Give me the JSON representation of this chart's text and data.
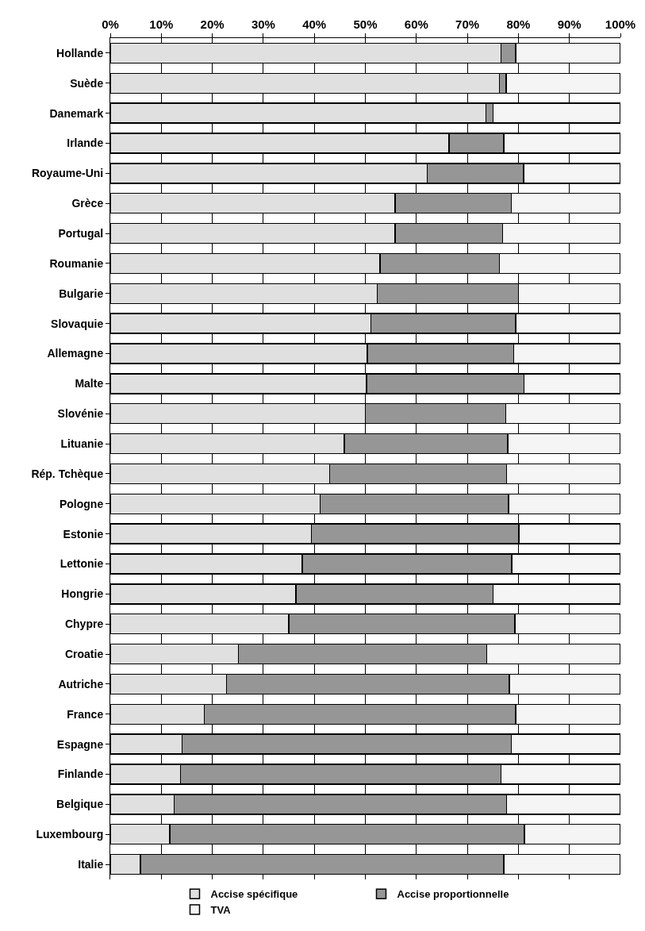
{
  "chart_data": {
    "type": "bar",
    "orientation": "horizontal",
    "stacked": true,
    "categories": [
      "Hollande",
      "Suède",
      "Danemark",
      "Irlande",
      "Royaume-Uni",
      "Grèce",
      "Portugal",
      "Roumanie",
      "Bulgarie",
      "Slovaquie",
      "Allemagne",
      "Malte",
      "Slovénie",
      "Lituanie",
      "Rép. Tchèque",
      "Pologne",
      "Estonie",
      "Lettonie",
      "Hongrie",
      "Chypre",
      "Croatie",
      "Autriche",
      "France",
      "Espagne",
      "Finlande",
      "Belgique",
      "Luxembourg",
      "Italie"
    ],
    "series": [
      {
        "name": "Accise spécifique",
        "color": "#e0e0e0",
        "values": [
          76.6,
          76.3,
          73.6,
          66.4,
          62.1,
          55.8,
          55.8,
          52.9,
          52.3,
          51.1,
          50.4,
          50.2,
          50.0,
          45.9,
          43.0,
          41.1,
          39.4,
          37.6,
          36.4,
          35.0,
          25.1,
          22.8,
          18.4,
          14.1,
          13.8,
          12.5,
          11.7,
          5.9
        ]
      },
      {
        "name": "Accise proportionnelle",
        "color": "#969696",
        "values": [
          2.9,
          1.3,
          1.4,
          10.7,
          18.9,
          22.8,
          21.1,
          23.4,
          27.7,
          28.4,
          28.7,
          30.9,
          27.5,
          32.0,
          34.7,
          37.0,
          40.7,
          41.1,
          38.6,
          44.3,
          48.7,
          55.4,
          61.1,
          64.5,
          62.8,
          65.2,
          69.5,
          71.2
        ]
      },
      {
        "name": "TVA",
        "color": "#f5f5f5",
        "values": [
          20.5,
          22.4,
          25.0,
          22.9,
          19.0,
          21.4,
          23.1,
          23.7,
          20.0,
          20.5,
          20.9,
          18.9,
          22.5,
          22.1,
          22.3,
          21.9,
          19.9,
          21.3,
          25.0,
          20.7,
          26.2,
          21.8,
          20.5,
          21.4,
          23.4,
          22.3,
          18.8,
          22.9
        ]
      }
    ],
    "xlim": [
      0,
      100
    ],
    "xticks": [
      {
        "value": 0,
        "label": "0%"
      },
      {
        "value": 10,
        "label": "10%"
      },
      {
        "value": 20,
        "label": "20%"
      },
      {
        "value": 30,
        "label": "30%"
      },
      {
        "value": 40,
        "label": "40%"
      },
      {
        "value": 50,
        "label": "50%"
      },
      {
        "value": 60,
        "label": "60%"
      },
      {
        "value": 70,
        "label": "70%"
      },
      {
        "value": 80,
        "label": "80%"
      },
      {
        "value": 90,
        "label": "90%"
      },
      {
        "value": 100,
        "label": "100%"
      }
    ],
    "grid": "x",
    "legend": "bottom"
  }
}
